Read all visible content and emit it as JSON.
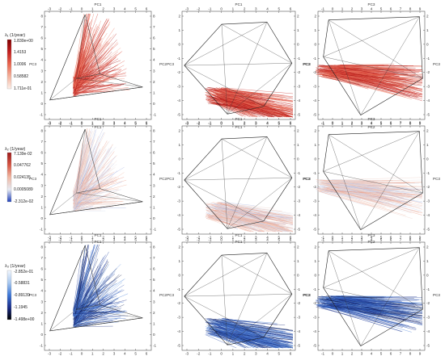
{
  "figure": {
    "rows": [
      {
        "colorbar": {
          "title": "λ₁ (1/year)",
          "ticks": [
            "1.830e+00",
            "1.4153",
            "1.0006",
            "0.58582",
            "1.711e-01"
          ],
          "colors": [
            "#7f0000",
            "#c21f1f",
            "#e9664f",
            "#f4b29c",
            "#fdf0ea"
          ]
        }
      },
      {
        "colorbar": {
          "title": "λ₂ (1/year)",
          "ticks": [
            "7.139e-02",
            "0.047762",
            "0.024135",
            "0.0005089",
            "-2.312e-02"
          ],
          "colors": [
            "#9b1a1a",
            "#d65543",
            "#f1b8a3",
            "#e6eaf3",
            "#1f3fb8"
          ]
        }
      },
      {
        "colorbar": {
          "title": "λ₃ (1/year)",
          "ticks": [
            "-2.852e-01",
            "-0.58831",
            "-0.89139",
            "-1.1945",
            "-1.498e+00"
          ],
          "colors": [
            "#f2f6fd",
            "#a8c8ef",
            "#3d77d6",
            "#1a2d8a",
            "#000000"
          ]
        }
      }
    ],
    "axis_names": {
      "pc1": "PC1",
      "pc2": "PC2",
      "pc3": "PC3"
    }
  },
  "chart_data": {
    "type": "other",
    "description_note": "",
    "panels_per_row": [
      "PC1-PC2 projection",
      "PC1-PC3 projection",
      "PC2-PC3 projection"
    ],
    "pc1_ticks": [
      "-3",
      "-2",
      "-1",
      "0",
      "1",
      "2",
      "3",
      "4",
      "5",
      "6"
    ],
    "pc2_ticks": [
      "-1",
      "0",
      "1",
      "2",
      "3",
      "4",
      "5",
      "6",
      "7",
      "8",
      "9"
    ],
    "pc3_ticks": [
      "2",
      "1",
      "0",
      "-1",
      "-2",
      "-3",
      "-4",
      "-5"
    ],
    "pc3_ticks_tall": [
      "8",
      "7",
      "6",
      "5",
      "4",
      "3",
      "2",
      "1",
      "0",
      "-1"
    ]
  }
}
